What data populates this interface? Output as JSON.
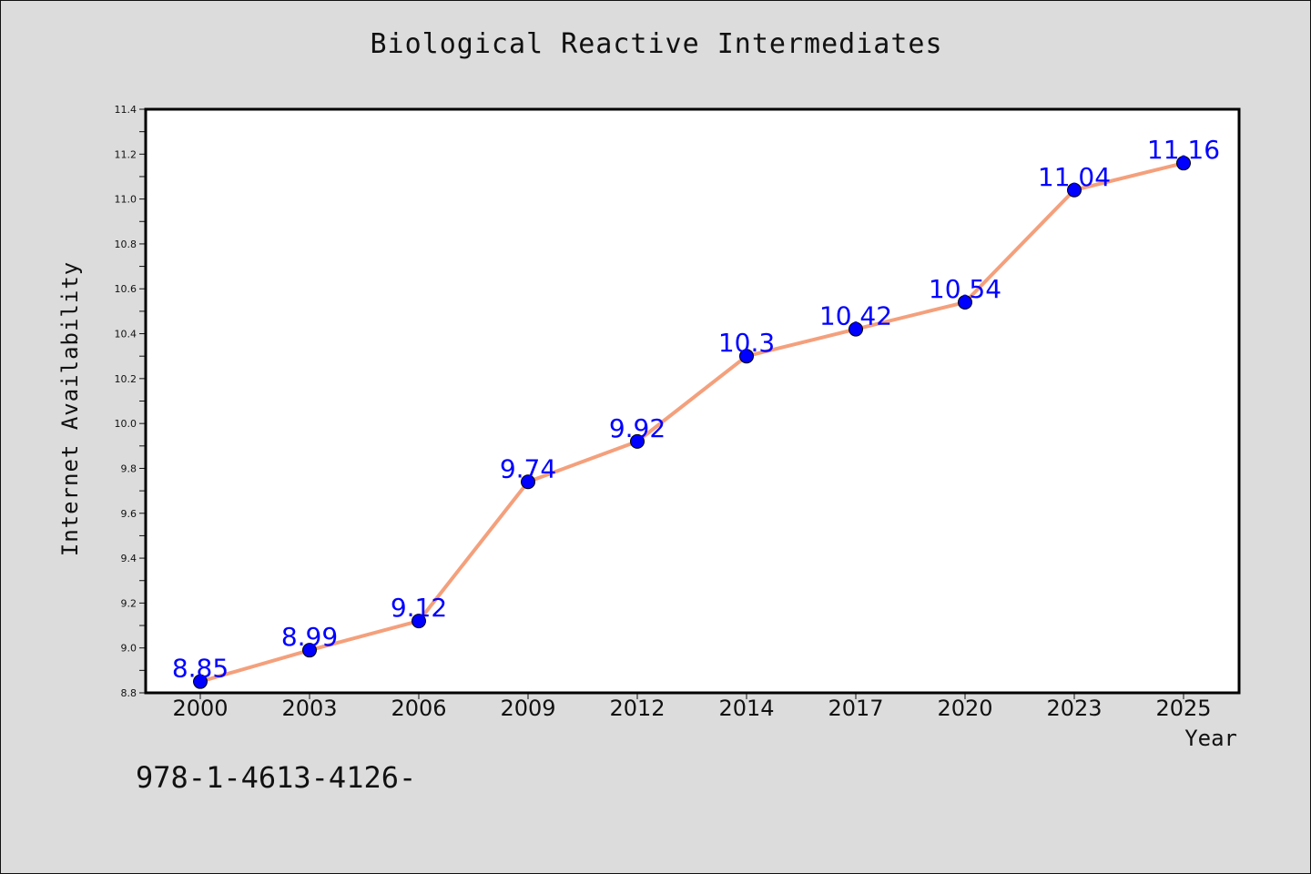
{
  "chart_data": {
    "type": "line",
    "title": "Biological Reactive Intermediates",
    "xlabel": "Year",
    "ylabel": "Internet Availability",
    "categories": [
      "2000",
      "2003",
      "2006",
      "2009",
      "2012",
      "2014",
      "2017",
      "2020",
      "2023",
      "2025"
    ],
    "series": [
      {
        "values": [
          8.85,
          8.99,
          9.12,
          9.74,
          9.92,
          10.3,
          10.42,
          10.54,
          11.04,
          11.16
        ],
        "labels": [
          "8.85",
          "8.99",
          "9.12",
          "9.74",
          "9.92",
          "10.3",
          "10.42",
          "10.54",
          "11.04",
          "11.16"
        ]
      }
    ],
    "ylim": [
      8.8,
      11.4
    ],
    "yticks": [
      "8.8",
      "9.0",
      "9.2",
      "9.4",
      "9.6",
      "9.8",
      "10.0",
      "10.2",
      "10.4",
      "10.6",
      "10.8",
      "11.0",
      "11.2",
      "11.4"
    ],
    "grid": false,
    "line_color": "#f4a07c",
    "marker_color": "#0000ff",
    "label_color": "#0000ff",
    "background_color": "#dcdcdc",
    "plot_background_color": "#ffffff"
  },
  "footer": {
    "note": "978-1-4613-4126-"
  }
}
